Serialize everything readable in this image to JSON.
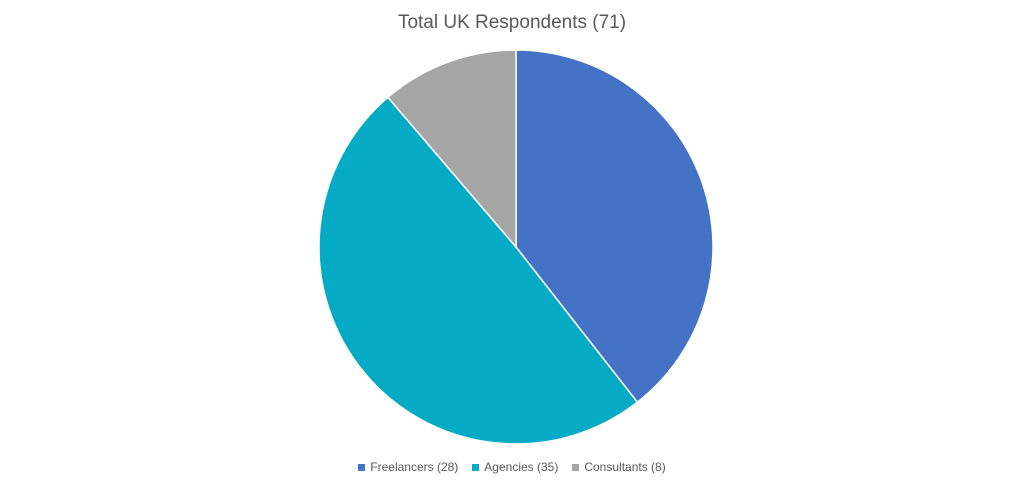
{
  "chart_data": {
    "type": "pie",
    "title": "Total UK Respondents (71)",
    "categories": [
      "Freelancers",
      "Agencies",
      "Consultants"
    ],
    "values": [
      28,
      35,
      8
    ],
    "colors": [
      "#4472C4",
      "#05AAC4",
      "#A5A5A5"
    ],
    "legend": {
      "position": "bottom",
      "labels": [
        "Freelancers (28)",
        "Agencies (35)",
        "Consultants (8)"
      ]
    }
  }
}
